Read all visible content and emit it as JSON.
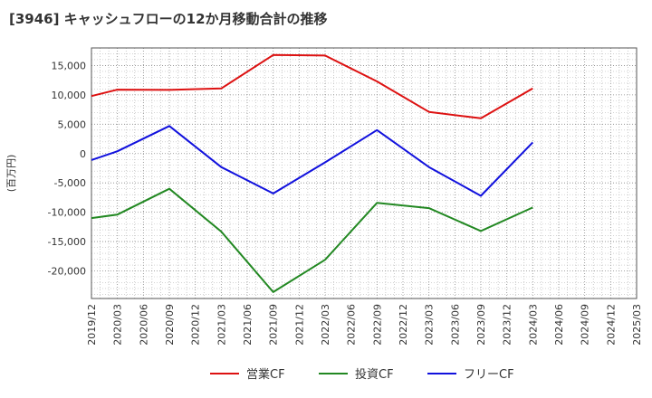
{
  "chart_data": {
    "type": "line",
    "title": "[3946]  キャッシュフローの12か月移動合計の推移",
    "ylabel": "(百万円)",
    "xlabel": "",
    "ylim": [
      -24700,
      18000
    ],
    "grid": true,
    "legend_position": "bottom",
    "categories": [
      "2019/12",
      "2020/03",
      "2020/06",
      "2020/09",
      "2020/12",
      "2021/03",
      "2021/06",
      "2021/09",
      "2021/12",
      "2022/03",
      "2022/06",
      "2022/09",
      "2022/12",
      "2023/03",
      "2023/06",
      "2023/09",
      "2023/12",
      "2024/03",
      "2024/06",
      "2024/09",
      "2024/12",
      "2025/03"
    ],
    "yticks": [
      15000,
      10000,
      5000,
      0,
      -5000,
      -10000,
      -15000,
      -20000
    ],
    "ytick_labels": [
      "15,000",
      "10,000",
      "5,000",
      "0",
      "-5,000",
      "-10,000",
      "-15,000",
      "-20,000"
    ],
    "series": [
      {
        "name": "営業CF",
        "color": "#dd1111",
        "points": [
          [
            "2019/12",
            9800
          ],
          [
            "2020/03",
            10900
          ],
          [
            "2020/09",
            10850
          ],
          [
            "2021/03",
            11100
          ],
          [
            "2021/09",
            16800
          ],
          [
            "2022/03",
            16700
          ],
          [
            "2022/09",
            12300
          ],
          [
            "2023/03",
            7100
          ],
          [
            "2023/09",
            6000
          ],
          [
            "2024/03",
            11100
          ]
        ]
      },
      {
        "name": "投資CF",
        "color": "#228822",
        "points": [
          [
            "2019/12",
            -11000
          ],
          [
            "2020/03",
            -10400
          ],
          [
            "2020/09",
            -6000
          ],
          [
            "2021/03",
            -13300
          ],
          [
            "2021/09",
            -23600
          ],
          [
            "2022/03",
            -18100
          ],
          [
            "2022/09",
            -8400
          ],
          [
            "2023/03",
            -9300
          ],
          [
            "2023/09",
            -13200
          ],
          [
            "2024/03",
            -9200
          ]
        ]
      },
      {
        "name": "フリーCF",
        "color": "#1111dd",
        "points": [
          [
            "2019/12",
            -1100
          ],
          [
            "2020/03",
            400
          ],
          [
            "2020/09",
            4700
          ],
          [
            "2021/03",
            -2300
          ],
          [
            "2021/09",
            -6800
          ],
          [
            "2022/03",
            -1500
          ],
          [
            "2022/09",
            4000
          ],
          [
            "2023/03",
            -2300
          ],
          [
            "2023/09",
            -7200
          ],
          [
            "2024/03",
            1900
          ]
        ]
      }
    ]
  }
}
